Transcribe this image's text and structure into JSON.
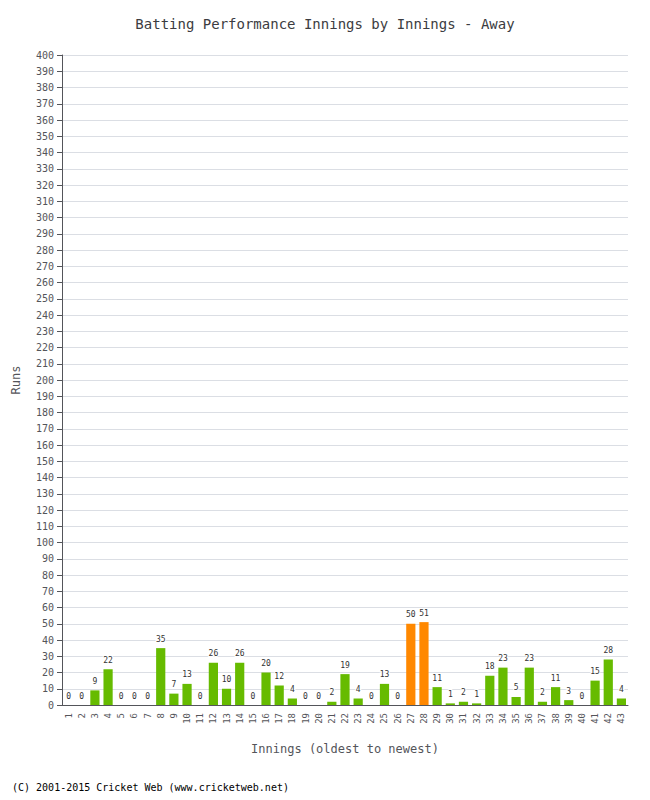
{
  "chart_data": {
    "type": "bar",
    "title": "Batting Performance Innings by Innings - Away",
    "x_label": "Innings (oldest to newest)",
    "y_label": "Runs",
    "categories": [
      1,
      2,
      3,
      4,
      5,
      6,
      7,
      8,
      9,
      10,
      11,
      12,
      13,
      14,
      15,
      16,
      17,
      18,
      19,
      20,
      21,
      22,
      23,
      24,
      25,
      26,
      27,
      28,
      29,
      30,
      31,
      32,
      33,
      34,
      35,
      36,
      37,
      38,
      39,
      40,
      41,
      42,
      43
    ],
    "values": [
      0,
      0,
      9,
      22,
      0,
      0,
      0,
      35,
      7,
      13,
      0,
      26,
      10,
      26,
      0,
      20,
      12,
      4,
      0,
      0,
      2,
      19,
      4,
      0,
      13,
      0,
      50,
      51,
      11,
      1,
      2,
      1,
      18,
      23,
      5,
      23,
      2,
      11,
      3,
      0,
      15,
      28,
      4
    ],
    "colors": [
      "#66bb00",
      "#66bb00",
      "#66bb00",
      "#66bb00",
      "#66bb00",
      "#66bb00",
      "#66bb00",
      "#66bb00",
      "#66bb00",
      "#66bb00",
      "#66bb00",
      "#66bb00",
      "#66bb00",
      "#66bb00",
      "#66bb00",
      "#66bb00",
      "#66bb00",
      "#66bb00",
      "#66bb00",
      "#66bb00",
      "#66bb00",
      "#66bb00",
      "#66bb00",
      "#66bb00",
      "#66bb00",
      "#66bb00",
      "#ff8800",
      "#ff8800",
      "#66bb00",
      "#66bb00",
      "#66bb00",
      "#66bb00",
      "#66bb00",
      "#66bb00",
      "#66bb00",
      "#66bb00",
      "#66bb00",
      "#66bb00",
      "#66bb00",
      "#66bb00",
      "#66bb00",
      "#66bb00",
      "#66bb00"
    ],
    "ylim": [
      0,
      400
    ],
    "yticks": [
      0,
      10,
      20,
      30,
      40,
      50,
      60,
      70,
      80,
      90,
      100,
      110,
      120,
      130,
      140,
      150,
      160,
      170,
      180,
      190,
      200,
      210,
      220,
      230,
      240,
      250,
      260,
      270,
      280,
      290,
      300,
      310,
      320,
      330,
      340,
      350,
      360,
      370,
      380,
      390,
      400
    ],
    "grid": true,
    "data_labels": true,
    "annotations": [
      "(C) 2001-2015 Cricket Web (www.cricketweb.net)"
    ]
  }
}
